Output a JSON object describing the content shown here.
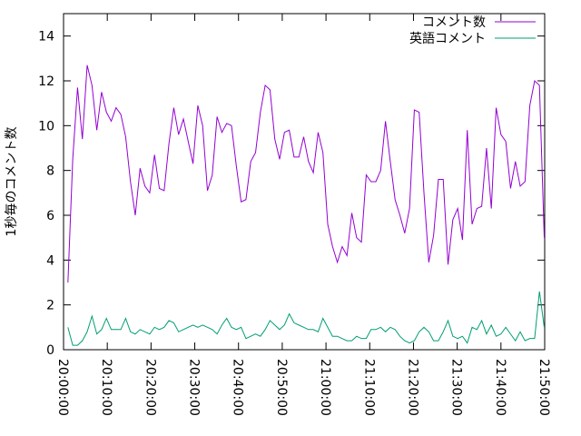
{
  "chart_data": {
    "type": "line",
    "ylabel": "1秒毎のコメント数",
    "x": [
      "20:01:00",
      "20:02:06",
      "20:03:12",
      "20:04:18",
      "20:05:24",
      "20:06:30",
      "20:07:36",
      "20:08:42",
      "20:09:48",
      "20:10:54",
      "20:12:00",
      "20:13:06",
      "20:14:12",
      "20:15:18",
      "20:16:24",
      "20:17:30",
      "20:18:36",
      "20:19:42",
      "20:20:48",
      "20:21:54",
      "20:23:00",
      "20:24:06",
      "20:25:12",
      "20:26:18",
      "20:27:24",
      "20:28:30",
      "20:29:36",
      "20:30:42",
      "20:31:48",
      "20:32:54",
      "20:34:00",
      "20:35:06",
      "20:36:12",
      "20:37:18",
      "20:38:24",
      "20:39:30",
      "20:40:36",
      "20:41:42",
      "20:42:48",
      "20:43:54",
      "20:45:00",
      "20:46:06",
      "20:47:12",
      "20:48:18",
      "20:49:24",
      "20:50:30",
      "20:51:36",
      "20:52:42",
      "20:53:48",
      "20:54:54",
      "20:56:00",
      "20:57:06",
      "20:58:12",
      "20:59:18",
      "21:00:24",
      "21:01:30",
      "21:02:36",
      "21:03:42",
      "21:04:48",
      "21:05:54",
      "21:07:00",
      "21:08:06",
      "21:09:12",
      "21:10:18",
      "21:11:24",
      "21:12:30",
      "21:13:36",
      "21:14:42",
      "21:15:48",
      "21:16:54",
      "21:18:00",
      "21:19:06",
      "21:20:12",
      "21:21:18",
      "21:22:24",
      "21:23:30",
      "21:24:36",
      "21:25:42",
      "21:26:48",
      "21:27:54",
      "21:29:00",
      "21:30:06",
      "21:31:12",
      "21:32:18",
      "21:33:24",
      "21:34:30",
      "21:35:36",
      "21:36:42",
      "21:37:48",
      "21:38:54",
      "21:40:00",
      "21:41:06",
      "21:42:12",
      "21:43:18",
      "21:44:24",
      "21:45:30",
      "21:46:36",
      "21:47:42",
      "21:48:48",
      "21:49:54"
    ],
    "series": [
      {
        "name": "コメント数",
        "color": "#9400d3",
        "values": [
          3.0,
          8.5,
          11.7,
          9.4,
          12.7,
          11.8,
          9.8,
          11.5,
          10.6,
          10.2,
          10.8,
          10.5,
          9.5,
          7.5,
          6.0,
          8.1,
          7.3,
          7.0,
          8.7,
          7.2,
          7.1,
          9.2,
          10.8,
          9.6,
          10.3,
          9.3,
          8.3,
          10.9,
          10.0,
          7.1,
          7.8,
          10.4,
          9.7,
          10.1,
          10.0,
          8.2,
          6.6,
          6.7,
          8.4,
          8.8,
          10.6,
          11.8,
          11.6,
          9.4,
          8.5,
          9.7,
          9.8,
          8.6,
          8.6,
          9.5,
          8.4,
          7.9,
          9.7,
          8.8,
          5.6,
          4.6,
          3.9,
          4.6,
          4.2,
          6.1,
          5.0,
          4.8,
          7.8,
          7.5,
          7.5,
          8.0,
          10.2,
          8.4,
          6.7,
          6.0,
          5.2,
          6.3,
          10.7,
          10.6,
          7.0,
          3.9,
          5.1,
          7.6,
          7.6,
          3.8,
          5.8,
          6.3,
          4.9,
          9.8,
          5.6,
          6.3,
          6.4,
          9.0,
          6.3,
          10.8,
          9.6,
          9.3,
          7.2,
          8.4,
          7.3,
          7.5,
          10.9,
          12.0,
          11.8,
          5.0
        ]
      },
      {
        "name": "英語コメント",
        "color": "#009e73",
        "values": [
          1.0,
          0.2,
          0.2,
          0.4,
          0.8,
          1.5,
          0.7,
          0.9,
          1.4,
          0.9,
          0.9,
          0.9,
          1.4,
          0.8,
          0.7,
          0.9,
          0.8,
          0.7,
          1.0,
          0.9,
          1.0,
          1.3,
          1.2,
          0.8,
          0.9,
          1.0,
          1.1,
          1.0,
          1.1,
          1.0,
          0.9,
          0.7,
          1.1,
          1.4,
          1.0,
          0.9,
          1.0,
          0.5,
          0.6,
          0.7,
          0.6,
          0.9,
          1.3,
          1.1,
          0.9,
          1.1,
          1.6,
          1.2,
          1.1,
          1.0,
          0.9,
          0.9,
          0.8,
          1.4,
          1.0,
          0.6,
          0.6,
          0.5,
          0.4,
          0.4,
          0.6,
          0.5,
          0.5,
          0.9,
          0.9,
          1.0,
          0.8,
          1.0,
          0.9,
          0.6,
          0.4,
          0.3,
          0.4,
          0.8,
          1.0,
          0.8,
          0.4,
          0.4,
          0.8,
          1.3,
          0.6,
          0.5,
          0.6,
          0.3,
          1.0,
          0.9,
          1.3,
          0.7,
          1.1,
          0.6,
          0.7,
          1.0,
          0.7,
          0.4,
          0.8,
          0.4,
          0.5,
          0.5,
          2.6,
          1.0
        ]
      }
    ],
    "xlim": [
      "20:00:00",
      "21:50:00"
    ],
    "xticks": [
      "20:00:00",
      "20:10:00",
      "20:20:00",
      "20:30:00",
      "20:40:00",
      "20:50:00",
      "21:00:00",
      "21:10:00",
      "21:20:00",
      "21:30:00",
      "21:40:00",
      "21:50:00"
    ],
    "ylim": [
      0,
      15
    ],
    "yticks": [
      0,
      2,
      4,
      6,
      8,
      10,
      12,
      14
    ],
    "legend": "top-right"
  }
}
